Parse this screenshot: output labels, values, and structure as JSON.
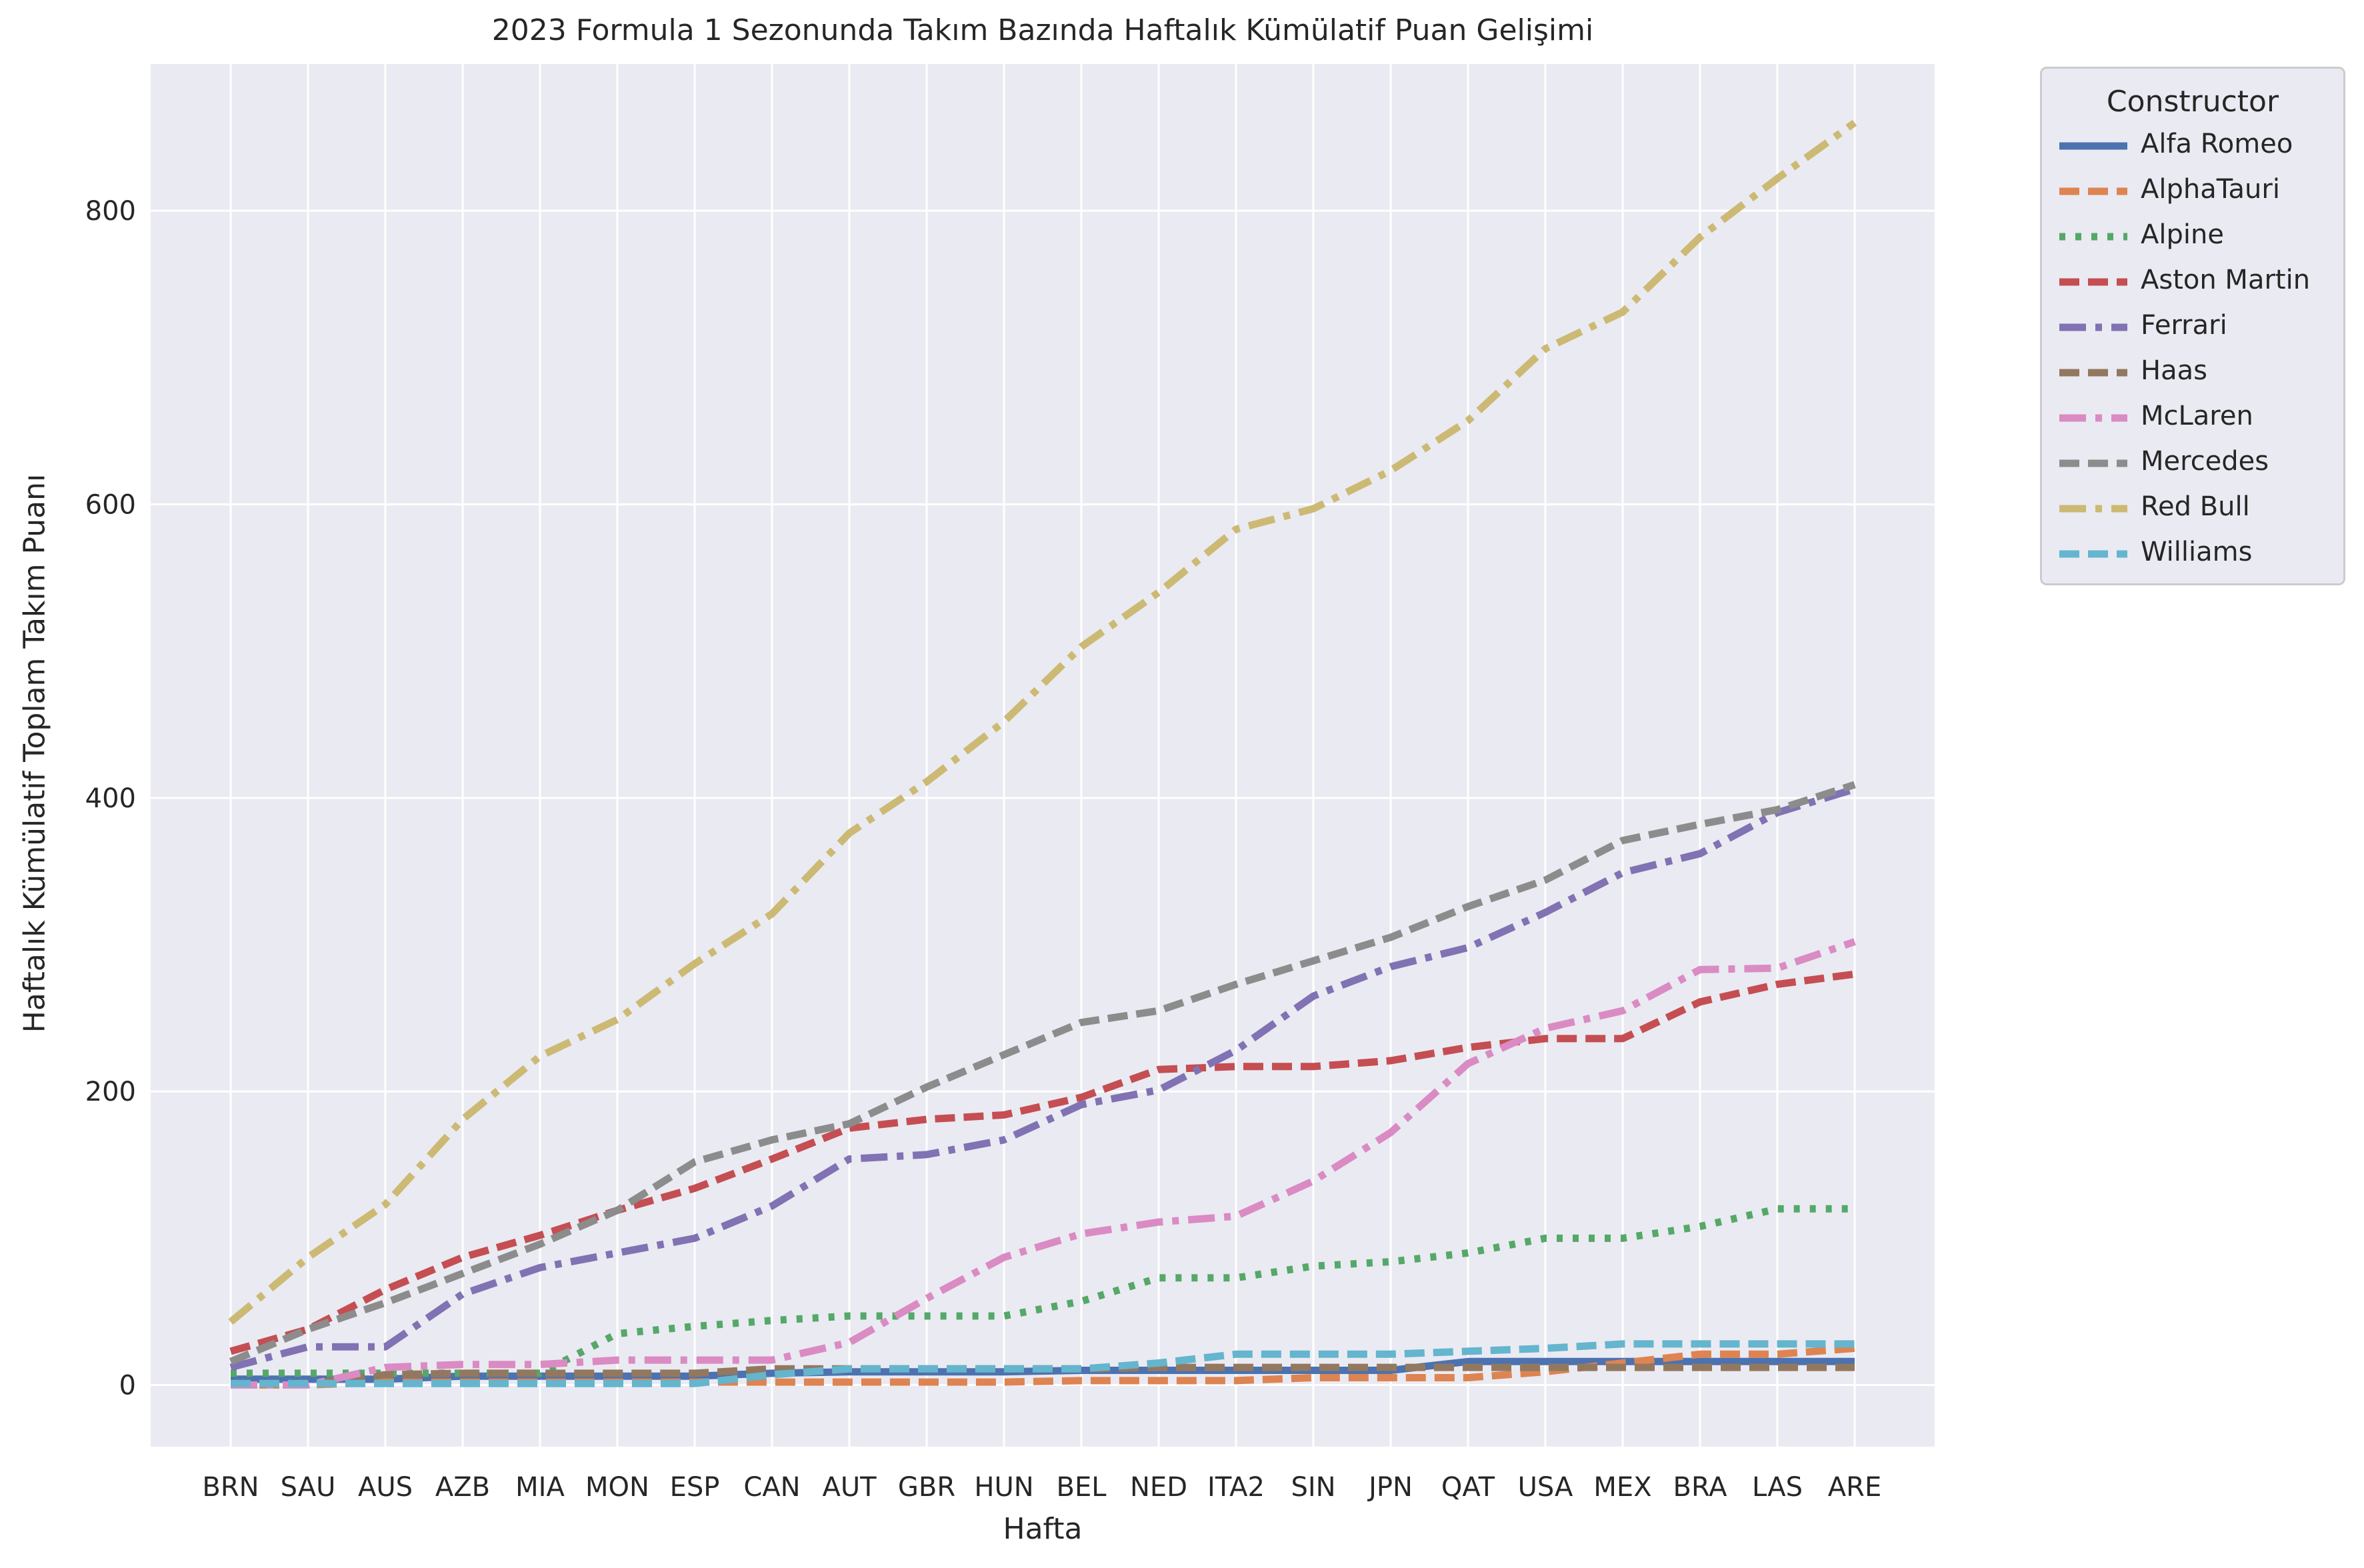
{
  "chart_data": {
    "type": "line",
    "title": "2023 Formula 1 Sezonunda Takım Bazında Haftalık Kümülatif Puan Gelişimi",
    "xlabel": "Hafta",
    "ylabel": "Haftalık Kümülatif Toplam Takım Puanı",
    "categories": [
      "BRN",
      "SAU",
      "AUS",
      "AZB",
      "MIA",
      "MON",
      "ESP",
      "CAN",
      "AUT",
      "GBR",
      "HUN",
      "BEL",
      "NED",
      "ITA2",
      "SIN",
      "JPN",
      "QAT",
      "USA",
      "MEX",
      "BRA",
      "LAS",
      "ARE"
    ],
    "ylim": [
      -42,
      900
    ],
    "yticks": [
      0,
      200,
      400,
      600,
      800
    ],
    "grid": true,
    "legend": {
      "title": "Constructor",
      "placement": "outside-top-right"
    },
    "series": [
      {
        "name": "Alfa Romeo",
        "color": "#4c72b0",
        "dash": "solid",
        "values": [
          4,
          4,
          4,
          6,
          6,
          6,
          6,
          8,
          9,
          9,
          9,
          10,
          10,
          10,
          10,
          10,
          16,
          16,
          16,
          16,
          16,
          16
        ]
      },
      {
        "name": "AlphaTauri",
        "color": "#dd8452",
        "dash": "dashed",
        "values": [
          0,
          0,
          2,
          2,
          2,
          2,
          2,
          2,
          2,
          2,
          2,
          3,
          3,
          3,
          5,
          5,
          5,
          9,
          15,
          21,
          21,
          25
        ]
      },
      {
        "name": "Alpine",
        "color": "#55a868",
        "dash": "dotted",
        "values": [
          8,
          8,
          8,
          8,
          8,
          35,
          40,
          44,
          47,
          47,
          47,
          57,
          73,
          73,
          81,
          84,
          90,
          100,
          100,
          108,
          120,
          120
        ]
      },
      {
        "name": "Aston Martin",
        "color": "#c44e52",
        "dash": "dashed",
        "values": [
          23,
          38,
          65,
          87,
          102,
          119,
          134,
          154,
          175,
          181,
          184,
          196,
          215,
          217,
          217,
          221,
          230,
          236,
          236,
          261,
          273,
          280
        ]
      },
      {
        "name": "Ferrari",
        "color": "#8172b3",
        "dash": "dashdot",
        "values": [
          12,
          26,
          26,
          62,
          80,
          90,
          100,
          122,
          154,
          157,
          167,
          191,
          201,
          228,
          265,
          285,
          298,
          322,
          349,
          362,
          390,
          406
        ]
      },
      {
        "name": "Haas",
        "color": "#937860",
        "dash": "dashed",
        "values": [
          1,
          1,
          7,
          8,
          8,
          8,
          8,
          11,
          11,
          11,
          11,
          11,
          12,
          12,
          12,
          12,
          12,
          12,
          12,
          12,
          12,
          12
        ]
      },
      {
        "name": "McLaren",
        "color": "#da8bc3",
        "dash": "dashdot",
        "values": [
          0,
          0,
          12,
          14,
          14,
          17,
          17,
          17,
          29,
          59,
          87,
          103,
          111,
          115,
          139,
          172,
          219,
          243,
          255,
          283,
          284,
          302
        ]
      },
      {
        "name": "Mercedes",
        "color": "#8c8c8c",
        "dash": "dashed",
        "values": [
          16,
          38,
          56,
          76,
          96,
          119,
          152,
          167,
          178,
          203,
          225,
          247,
          255,
          273,
          289,
          305,
          326,
          344,
          371,
          382,
          392,
          409
        ]
      },
      {
        "name": "Red Bull",
        "color": "#ccb974",
        "dash": "dashdot",
        "values": [
          43,
          87,
          123,
          181,
          224,
          249,
          287,
          321,
          376,
          411,
          452,
          503,
          540,
          583,
          597,
          623,
          657,
          706,
          731,
          782,
          822,
          860
        ]
      },
      {
        "name": "Williams",
        "color": "#64b5cd",
        "dash": "dashed",
        "values": [
          1,
          1,
          1,
          1,
          1,
          1,
          1,
          7,
          11,
          11,
          11,
          11,
          15,
          21,
          21,
          21,
          23,
          25,
          28,
          28,
          28,
          28
        ]
      }
    ]
  }
}
